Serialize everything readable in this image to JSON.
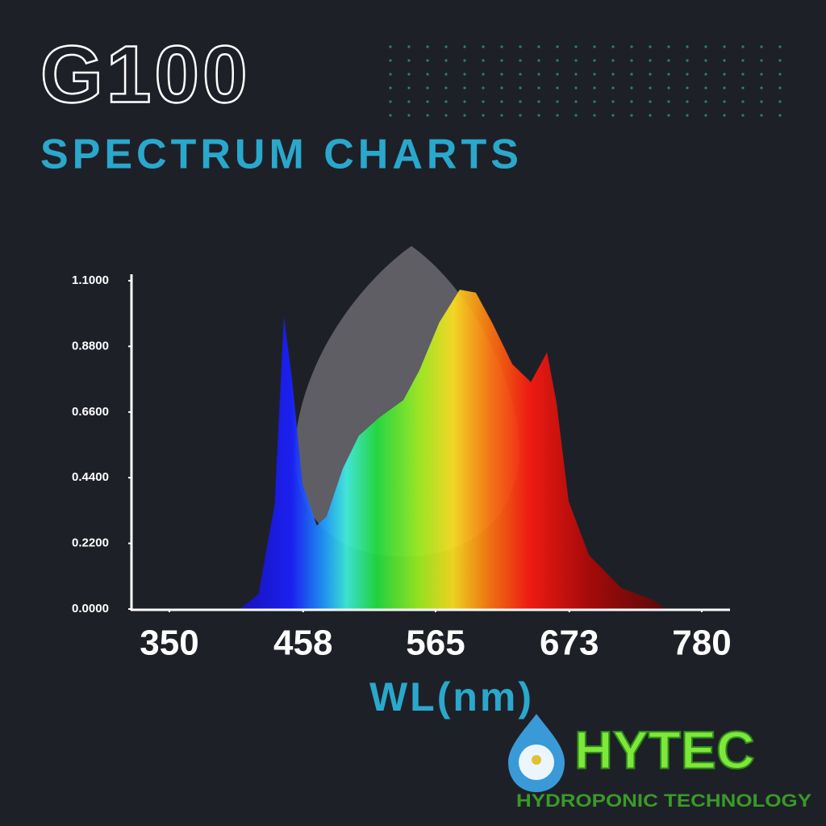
{
  "chart_data": {
    "type": "area",
    "title": "G100",
    "subtitle": "SPECTRUM CHARTS",
    "xlabel": "WL(nm)",
    "x": [
      407,
      422,
      435,
      442.5,
      449,
      457.5,
      469,
      477,
      490,
      503,
      519,
      539,
      552,
      568,
      584.5,
      597.5,
      610.6,
      627,
      642,
      655,
      662.7,
      672.5,
      689,
      715,
      741,
      750.6
    ],
    "values": [
      0,
      0.05,
      0.35,
      0.98,
      0.77,
      0.42,
      0.28,
      0.31,
      0.47,
      0.58,
      0.64,
      0.7,
      0.8,
      0.96,
      1.07,
      1.06,
      0.96,
      0.82,
      0.76,
      0.86,
      0.69,
      0.36,
      0.18,
      0.07,
      0.03,
      0
    ],
    "xlim": [
      319,
      800
    ],
    "xticks": [
      350,
      458,
      565,
      673,
      780
    ],
    "ylim": [
      0,
      1.1
    ],
    "yticks": [
      {
        "value": 0,
        "label": "0.0000"
      },
      {
        "value": 0.22,
        "label": "0.2200"
      },
      {
        "value": 0.44,
        "label": "0.4400"
      },
      {
        "value": 0.66,
        "label": "0.6600"
      },
      {
        "value": 0.88,
        "label": "0.8800"
      },
      {
        "value": 1.1,
        "label": "1.1000"
      }
    ],
    "grid": false
  },
  "logo": {
    "name": "HYTEC",
    "tagline": "HYDROPONIC TECHNOLOGY"
  }
}
